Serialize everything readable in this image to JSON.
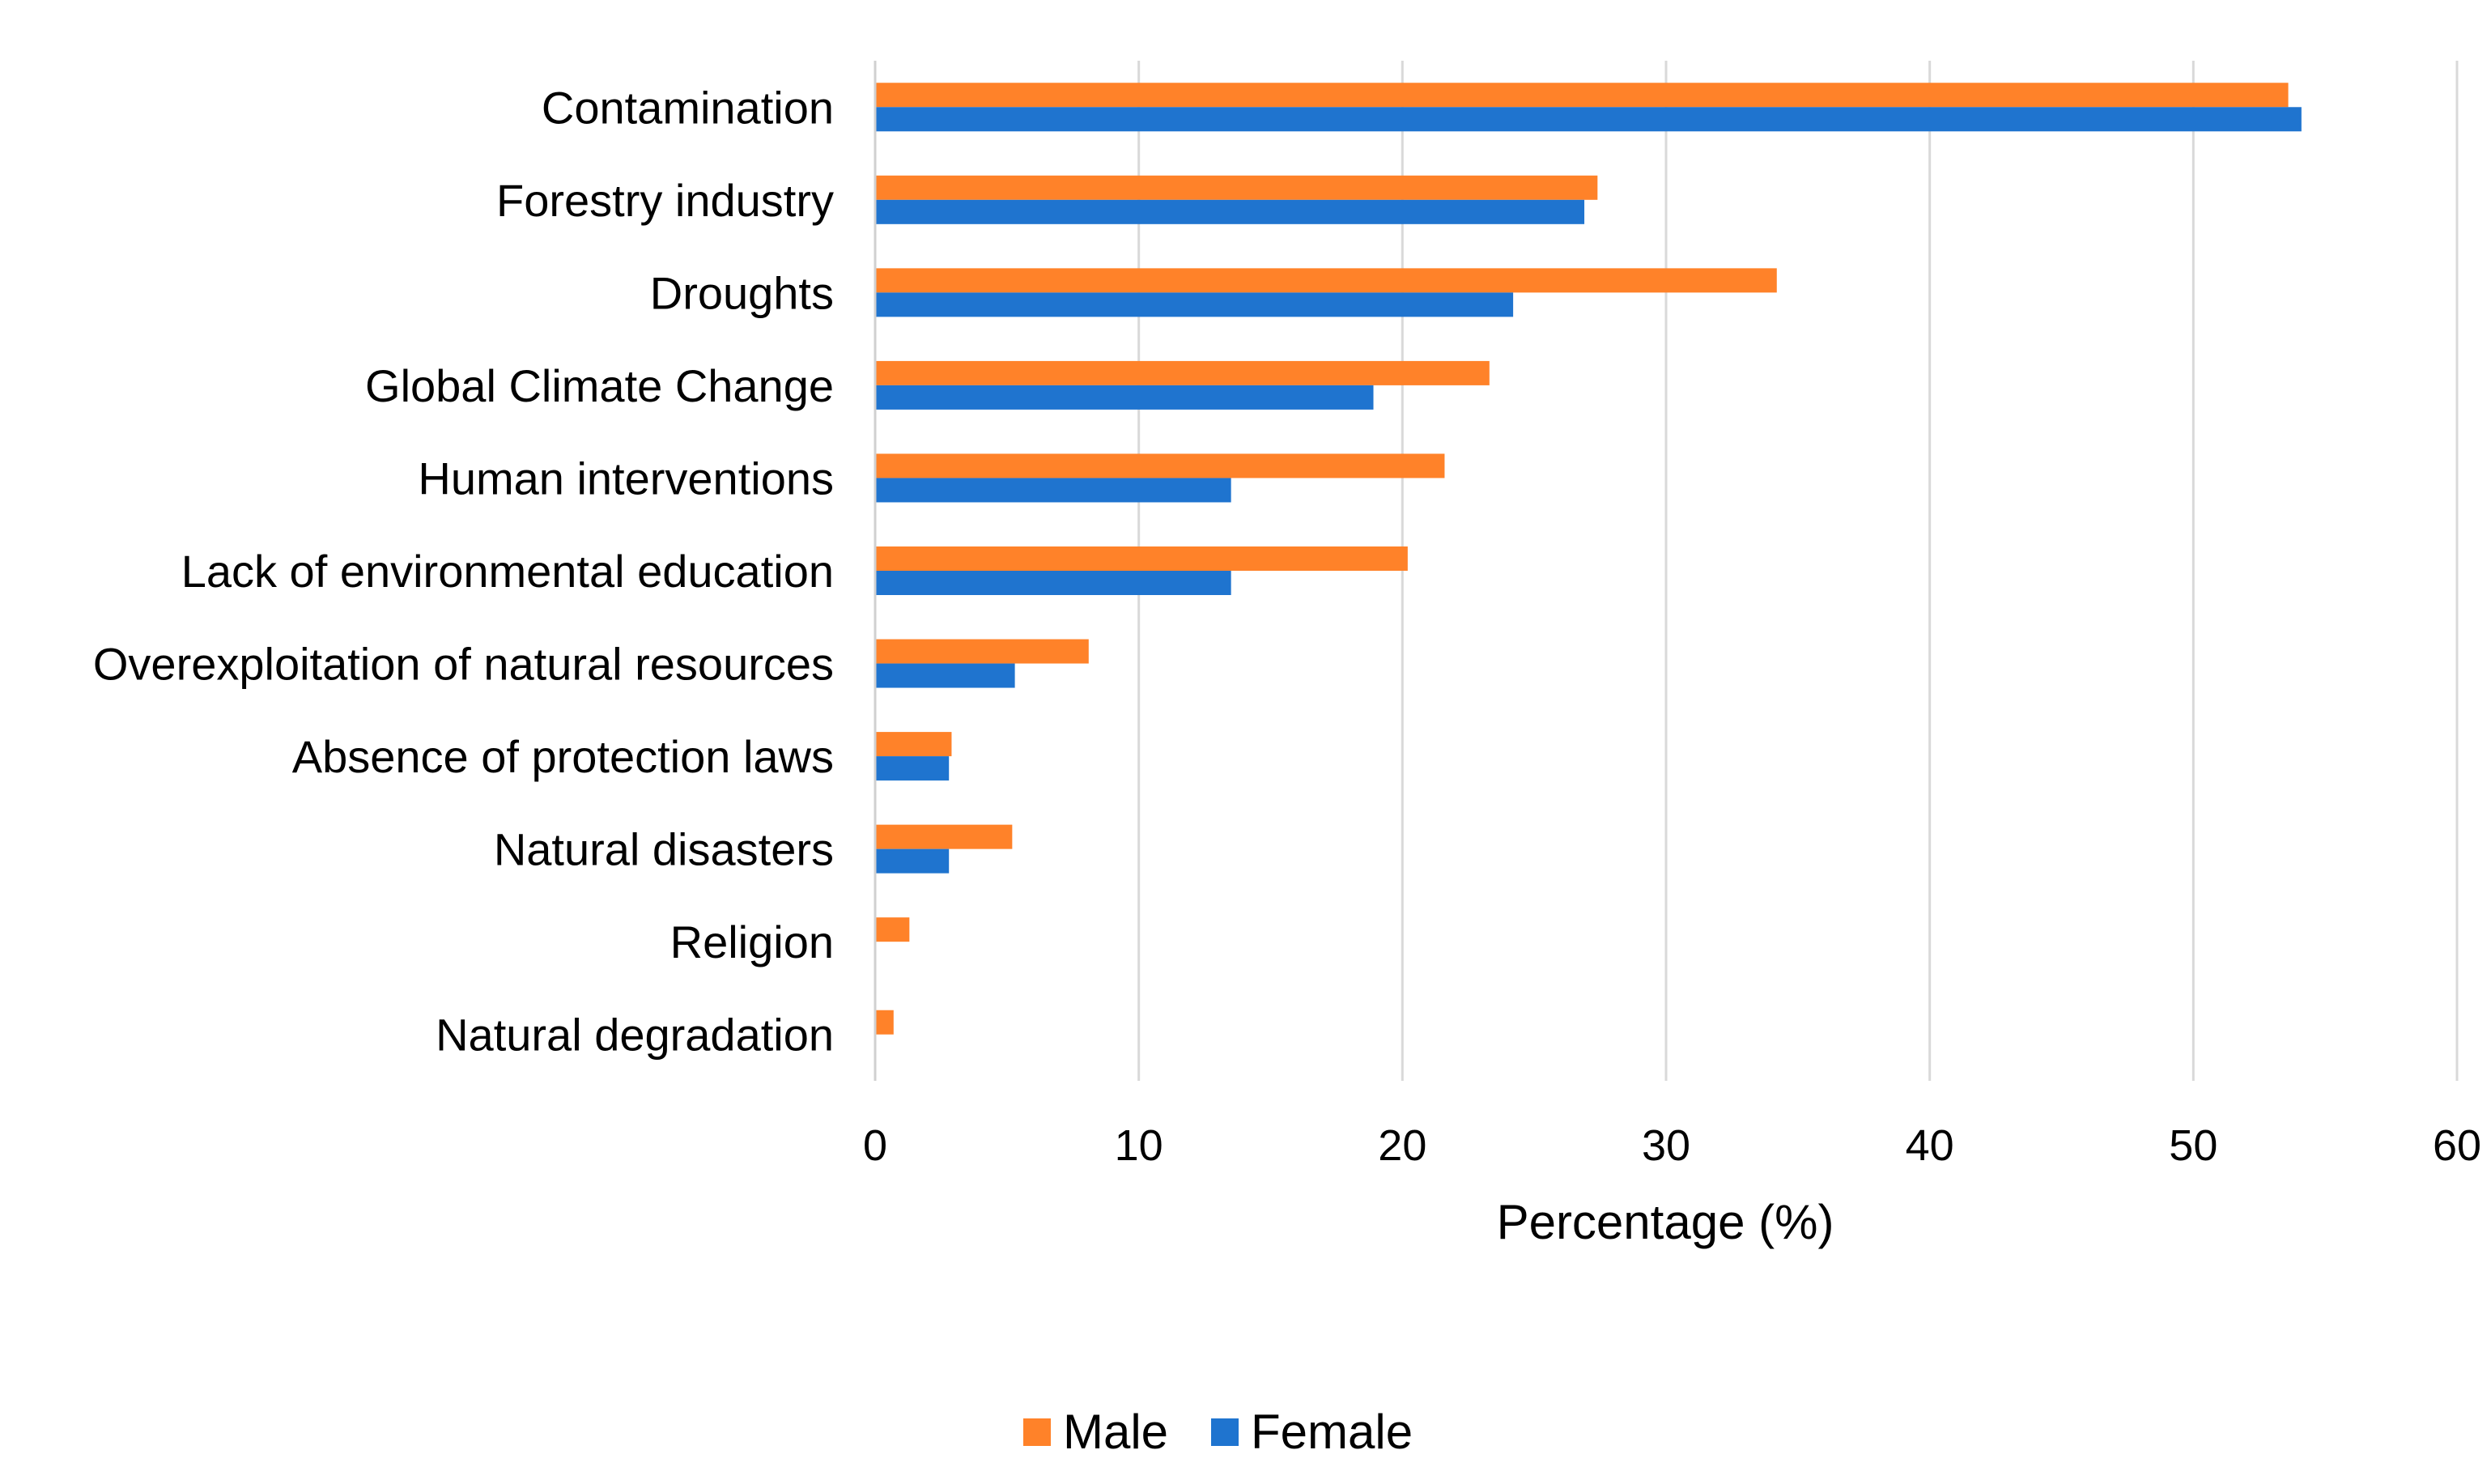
{
  "chart_data": {
    "type": "bar",
    "orientation": "horizontal",
    "title": "",
    "xlabel": "Percentage  (%)",
    "ylabel": "",
    "xlim": [
      0,
      60
    ],
    "xticks": [
      0,
      10,
      20,
      30,
      40,
      50,
      60
    ],
    "grid": true,
    "legend_position": "bottom",
    "categories": [
      "Contamination",
      "Forestry industry",
      "Droughts",
      "Global Climate Change",
      "Human interventions",
      "Lack of environmental education",
      "Overexploitation of natural resources",
      "Absence of protection laws",
      "Natural disasters",
      "Religion",
      "Natural degradation"
    ],
    "series": [
      {
        "name": "Male",
        "color": "#FF8229",
        "values": [
          53.6,
          27.4,
          34.2,
          23.3,
          21.6,
          20.2,
          8.1,
          2.9,
          5.2,
          1.3,
          0.7
        ]
      },
      {
        "name": "Female",
        "color": "#1F74CF",
        "values": [
          54.1,
          26.9,
          24.2,
          18.9,
          13.5,
          13.5,
          5.3,
          2.8,
          2.8,
          0,
          0
        ]
      }
    ]
  }
}
